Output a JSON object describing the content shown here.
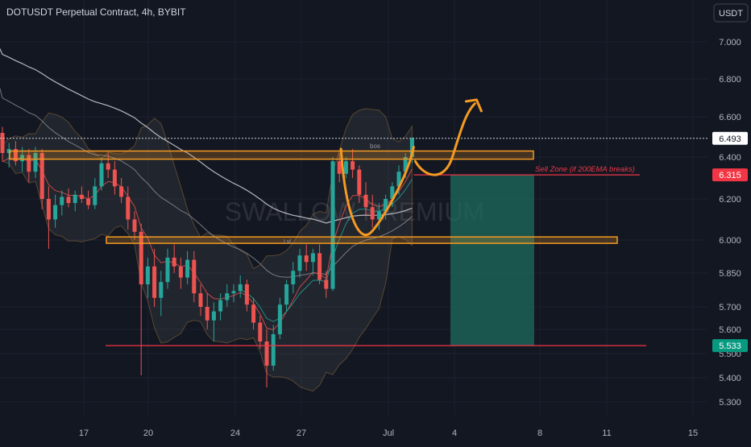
{
  "header": {
    "title": "DOTUSDT Perpetual Contract, 4h, BYBIT",
    "currency_button": "USDT"
  },
  "watermark": "SWALLOW PREMIUM",
  "colors": {
    "background": "#131722",
    "grid": "#1c2130",
    "axis_text": "#b2b5be",
    "up": "#26a69a",
    "down": "#ef5350",
    "zone": "#f59a22",
    "ema200": "#d1d4dc",
    "ema_slow": "#787b86",
    "target_box": "#1e6b5e",
    "sell_line": "#f23645"
  },
  "annotations": {
    "sell_zone_label": "Sell Zone (if 200EMA breaks)",
    "bos_label": "bos",
    "lvl_label": "Lvl"
  },
  "chart_data": {
    "type": "candlestick",
    "symbol": "DOTUSDT Perpetual Contract",
    "timeframe": "4h",
    "exchange": "BYBIT",
    "ylim": [
      5.25,
      7.15
    ],
    "y_ticks": [
      "7.000",
      "6.800",
      "6.600",
      "6.400",
      "6.200",
      "6.000",
      "5.850",
      "5.700",
      "5.600",
      "5.500",
      "5.400",
      "5.300"
    ],
    "x_ticks": [
      "17",
      "20",
      "24",
      "27",
      "Jul",
      "4",
      "8",
      "11",
      "15"
    ],
    "price_labels": {
      "last": "6.493",
      "sell_zone": "6.315",
      "target": "5.533"
    },
    "price_values": {
      "last": 6.493,
      "sell_zone": 6.315,
      "target": 5.533
    },
    "resistance_zone": [
      6.39,
      6.43
    ],
    "support_zone": [
      5.985,
      6.015
    ],
    "candles": [
      [
        6.52,
        6.55,
        6.38,
        6.42
      ],
      [
        6.42,
        6.47,
        6.35,
        6.44
      ],
      [
        6.44,
        6.48,
        6.36,
        6.38
      ],
      [
        6.38,
        6.45,
        6.33,
        6.41
      ],
      [
        6.41,
        6.44,
        6.28,
        6.33
      ],
      [
        6.33,
        6.45,
        6.3,
        6.42
      ],
      [
        6.42,
        6.44,
        6.15,
        6.2
      ],
      [
        6.2,
        6.26,
        5.96,
        6.1
      ],
      [
        6.1,
        6.22,
        6.06,
        6.17
      ],
      [
        6.17,
        6.24,
        6.12,
        6.21
      ],
      [
        6.21,
        6.25,
        6.16,
        6.18
      ],
      [
        6.18,
        6.24,
        6.14,
        6.22
      ],
      [
        6.22,
        6.26,
        6.18,
        6.2
      ],
      [
        6.2,
        6.24,
        6.15,
        6.17
      ],
      [
        6.17,
        6.3,
        6.15,
        6.26
      ],
      [
        6.26,
        6.4,
        6.24,
        6.37
      ],
      [
        6.37,
        6.42,
        6.3,
        6.34
      ],
      [
        6.34,
        6.38,
        6.22,
        6.26
      ],
      [
        6.26,
        6.3,
        6.18,
        6.21
      ],
      [
        6.21,
        6.26,
        6.05,
        6.1
      ],
      [
        6.1,
        6.14,
        6.0,
        6.04
      ],
      [
        6.04,
        6.08,
        5.41,
        5.8
      ],
      [
        5.8,
        5.92,
        5.74,
        5.88
      ],
      [
        5.88,
        5.96,
        5.7,
        5.74
      ],
      [
        5.74,
        5.86,
        5.66,
        5.81
      ],
      [
        5.81,
        5.96,
        5.78,
        5.92
      ],
      [
        5.92,
        5.98,
        5.85,
        5.88
      ],
      [
        5.88,
        5.92,
        5.78,
        5.83
      ],
      [
        5.83,
        5.95,
        5.8,
        5.91
      ],
      [
        5.91,
        5.95,
        5.72,
        5.76
      ],
      [
        5.76,
        5.8,
        5.66,
        5.7
      ],
      [
        5.7,
        5.76,
        5.6,
        5.64
      ],
      [
        5.64,
        5.72,
        5.55,
        5.68
      ],
      [
        5.68,
        5.76,
        5.64,
        5.73
      ],
      [
        5.73,
        5.8,
        5.7,
        5.76
      ],
      [
        5.76,
        5.8,
        5.72,
        5.77
      ],
      [
        5.77,
        5.84,
        5.74,
        5.8
      ],
      [
        5.8,
        5.82,
        5.68,
        5.71
      ],
      [
        5.71,
        5.74,
        5.6,
        5.63
      ],
      [
        5.63,
        5.66,
        5.52,
        5.55
      ],
      [
        5.55,
        5.6,
        5.36,
        5.45
      ],
      [
        5.45,
        5.62,
        5.43,
        5.58
      ],
      [
        5.58,
        5.74,
        5.56,
        5.71
      ],
      [
        5.71,
        5.82,
        5.68,
        5.8
      ],
      [
        5.8,
        5.9,
        5.76,
        5.86
      ],
      [
        5.86,
        5.96,
        5.83,
        5.93
      ],
      [
        5.93,
        5.98,
        5.86,
        5.9
      ],
      [
        5.9,
        5.96,
        5.84,
        5.94
      ],
      [
        5.94,
        5.98,
        5.8,
        5.82
      ],
      [
        5.82,
        5.86,
        5.74,
        5.78
      ],
      [
        5.78,
        6.4,
        5.77,
        6.38
      ],
      [
        6.38,
        6.42,
        6.28,
        6.32
      ],
      [
        6.32,
        6.4,
        6.3,
        6.38
      ],
      [
        6.38,
        6.44,
        6.3,
        6.34
      ],
      [
        6.34,
        6.36,
        6.18,
        6.22
      ],
      [
        6.22,
        6.28,
        6.12,
        6.16
      ],
      [
        6.16,
        6.22,
        6.06,
        6.1
      ],
      [
        6.1,
        6.18,
        6.05,
        6.14
      ],
      [
        6.14,
        6.22,
        6.1,
        6.2
      ],
      [
        6.2,
        6.28,
        6.16,
        6.26
      ],
      [
        6.26,
        6.36,
        6.22,
        6.33
      ],
      [
        6.33,
        6.42,
        6.3,
        6.4
      ],
      [
        6.4,
        6.5,
        6.37,
        6.493
      ]
    ],
    "projection_path": "pullback to ~6.35 then breakout above 6.60"
  }
}
